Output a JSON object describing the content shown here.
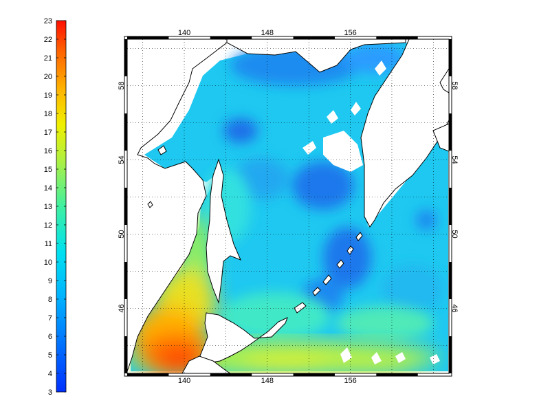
{
  "colorbar": {
    "ticks": [
      "3",
      "4",
      "5",
      "6",
      "7",
      "8",
      "9",
      "10",
      "11",
      "12",
      "13",
      "14",
      "15",
      "16",
      "17",
      "18",
      "19",
      "20",
      "21",
      "22",
      "23"
    ],
    "min": 3,
    "max": 23,
    "colormap": "jet"
  },
  "map": {
    "lon_labels": [
      "140",
      "148",
      "156"
    ],
    "lat_labels": [
      "58",
      "54",
      "50",
      "46"
    ],
    "lon_range": [
      134.5,
      165.5
    ],
    "lat_range": [
      42.5,
      60.5
    ],
    "grid": "dotted",
    "colors": {
      "frame": "#000000",
      "land": "#ffffff",
      "coast": "#000000",
      "cold": "#1e90ff",
      "mid": "#00c8e6",
      "warm": "#ff4000"
    }
  }
}
